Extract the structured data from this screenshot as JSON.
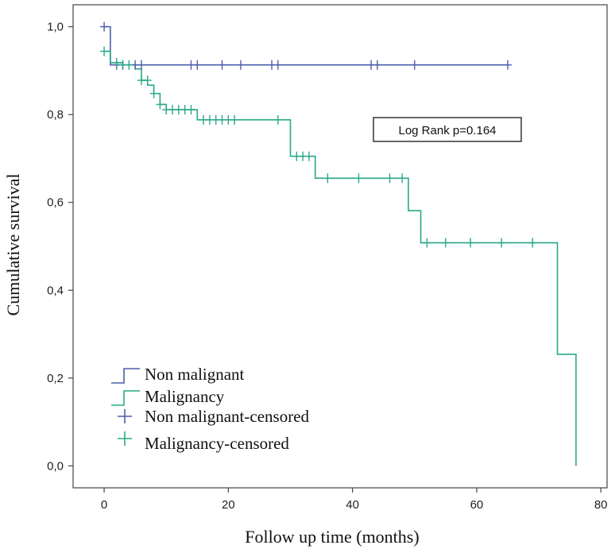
{
  "chart_data": {
    "type": "line",
    "subtype": "kaplan-meier",
    "xlabel": "Follow up time (months)",
    "ylabel": "Cumulative survival",
    "xlim": [
      -5,
      81
    ],
    "ylim": [
      -0.05,
      1.05
    ],
    "x_ticks": [
      0,
      20,
      40,
      60,
      80
    ],
    "y_ticks": [
      0.0,
      0.2,
      0.4,
      0.6,
      0.8,
      1.0
    ],
    "x_tick_labels": [
      "0",
      "20",
      "40",
      "60",
      "80"
    ],
    "y_tick_labels": [
      "0,0",
      "0,2",
      "0,4",
      "0,6",
      "0,8",
      "1,0"
    ],
    "annotation": "Log Rank p=0.164",
    "legend_position": "bottom-left",
    "series": [
      {
        "name": "Non malignant",
        "censored_name": "Non malignant-censored",
        "color": "#4a5fa8",
        "steps": [
          [
            0,
            1.0
          ],
          [
            1,
            0.913
          ],
          [
            65,
            0.913
          ]
        ],
        "censored": [
          [
            0,
            1.0
          ],
          [
            2,
            0.913
          ],
          [
            3,
            0.913
          ],
          [
            5,
            0.913
          ],
          [
            6,
            0.913
          ],
          [
            14,
            0.913
          ],
          [
            15,
            0.913
          ],
          [
            19,
            0.913
          ],
          [
            22,
            0.913
          ],
          [
            27,
            0.913
          ],
          [
            28,
            0.913
          ],
          [
            43,
            0.913
          ],
          [
            44,
            0.913
          ],
          [
            50,
            0.913
          ],
          [
            65,
            0.913
          ]
        ]
      },
      {
        "name": "Malignancy",
        "censored_name": "Malignancy-censored",
        "color": "#2aa888",
        "steps": [
          [
            0,
            0.944
          ],
          [
            1,
            0.918
          ],
          [
            3,
            0.913
          ],
          [
            5,
            0.904
          ],
          [
            6,
            0.878
          ],
          [
            7,
            0.867
          ],
          [
            8,
            0.848
          ],
          [
            9,
            0.823
          ],
          [
            10,
            0.811
          ],
          [
            15,
            0.788
          ],
          [
            30,
            0.705
          ],
          [
            34,
            0.655
          ],
          [
            49,
            0.581
          ],
          [
            51,
            0.508
          ],
          [
            73,
            0.254
          ],
          [
            76,
            0.0
          ]
        ],
        "censored": [
          [
            0,
            0.944
          ],
          [
            2,
            0.918
          ],
          [
            3,
            0.913
          ],
          [
            4,
            0.913
          ],
          [
            6,
            0.878
          ],
          [
            7,
            0.878
          ],
          [
            8,
            0.848
          ],
          [
            9,
            0.823
          ],
          [
            10,
            0.811
          ],
          [
            11,
            0.811
          ],
          [
            12,
            0.811
          ],
          [
            13,
            0.811
          ],
          [
            14,
            0.811
          ],
          [
            16,
            0.788
          ],
          [
            17,
            0.788
          ],
          [
            18,
            0.788
          ],
          [
            19,
            0.788
          ],
          [
            20,
            0.788
          ],
          [
            21,
            0.788
          ],
          [
            28,
            0.788
          ],
          [
            31,
            0.705
          ],
          [
            32,
            0.705
          ],
          [
            33,
            0.705
          ],
          [
            36,
            0.655
          ],
          [
            41,
            0.655
          ],
          [
            46,
            0.655
          ],
          [
            48,
            0.655
          ],
          [
            52,
            0.508
          ],
          [
            55,
            0.508
          ],
          [
            59,
            0.508
          ],
          [
            64,
            0.508
          ],
          [
            69,
            0.508
          ]
        ]
      }
    ]
  }
}
